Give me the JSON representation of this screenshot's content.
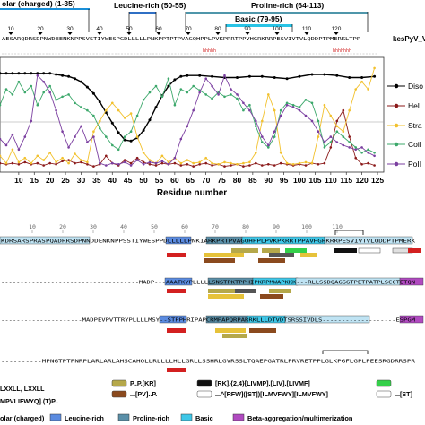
{
  "regions": {
    "polar": "olar (charged) (1-35)",
    "leucine": "Leucine-rich (50-55)",
    "proline": "Proline-rich (64-113)",
    "basic": "Basic (79-95)"
  },
  "region_colors": {
    "polar": "#1a8fd8",
    "leucine": "#2f6fc4",
    "proline": "#4f96aa",
    "basic": "#29c4e6"
  },
  "sequence_label": "kesPyV_V",
  "top_sequence": "AESARQDRSDPNWDEENKNPPSVSTIYWESPGDLLLLLPNKPPTPTPVAGQHPPLPVKPRRTPPVHGRKRRPESVIVTVLQDDPTPMERKLTPP",
  "markers": [
    10,
    20,
    30,
    40,
    50,
    60,
    70,
    80,
    90,
    100,
    110,
    120
  ],
  "chart_data": {
    "type": "line",
    "xlabel": "Residue number",
    "ylabel": "",
    "xlim": [
      4,
      127
    ],
    "ylim": [
      0,
      1
    ],
    "x_ticks": [
      10,
      15,
      20,
      25,
      30,
      35,
      40,
      45,
      50,
      55,
      60,
      65,
      70,
      75,
      80,
      85,
      90,
      95,
      100,
      105,
      110,
      115,
      120,
      125
    ],
    "legend_position": "right",
    "series": [
      {
        "name": "Diso",
        "color": "#000000",
        "points": [
          [
            4,
            0.9
          ],
          [
            6,
            0.9
          ],
          [
            8,
            0.9
          ],
          [
            10,
            0.9
          ],
          [
            12,
            0.9
          ],
          [
            14,
            0.9
          ],
          [
            16,
            0.9
          ],
          [
            18,
            0.9
          ],
          [
            20,
            0.9
          ],
          [
            22,
            0.89
          ],
          [
            24,
            0.88
          ],
          [
            26,
            0.87
          ],
          [
            28,
            0.85
          ],
          [
            30,
            0.82
          ],
          [
            32,
            0.77
          ],
          [
            34,
            0.71
          ],
          [
            36,
            0.63
          ],
          [
            38,
            0.53
          ],
          [
            40,
            0.43
          ],
          [
            42,
            0.34
          ],
          [
            44,
            0.27
          ],
          [
            46,
            0.26
          ],
          [
            48,
            0.29
          ],
          [
            50,
            0.36
          ],
          [
            52,
            0.46
          ],
          [
            54,
            0.58
          ],
          [
            56,
            0.69
          ],
          [
            58,
            0.78
          ],
          [
            60,
            0.84
          ],
          [
            62,
            0.87
          ],
          [
            64,
            0.88
          ],
          [
            68,
            0.88
          ],
          [
            72,
            0.87
          ],
          [
            76,
            0.86
          ],
          [
            80,
            0.86
          ],
          [
            84,
            0.87
          ],
          [
            88,
            0.87
          ],
          [
            92,
            0.86
          ],
          [
            96,
            0.85
          ],
          [
            100,
            0.87
          ],
          [
            104,
            0.89
          ],
          [
            108,
            0.89
          ],
          [
            112,
            0.88
          ],
          [
            116,
            0.86
          ],
          [
            120,
            0.86
          ],
          [
            124,
            0.87
          ]
        ]
      },
      {
        "name": "Hel",
        "color": "#8b1a1a",
        "points": [
          [
            4,
            0.05
          ],
          [
            6,
            0.04
          ],
          [
            8,
            0.05
          ],
          [
            10,
            0.04
          ],
          [
            12,
            0.06
          ],
          [
            14,
            0.04
          ],
          [
            16,
            0.05
          ],
          [
            18,
            0.03
          ],
          [
            20,
            0.05
          ],
          [
            22,
            0.04
          ],
          [
            24,
            0.07
          ],
          [
            26,
            0.08
          ],
          [
            28,
            0.05
          ],
          [
            30,
            0.06
          ],
          [
            32,
            0.04
          ],
          [
            34,
            0.02
          ],
          [
            36,
            0.04
          ],
          [
            38,
            0.12
          ],
          [
            40,
            0.05
          ],
          [
            42,
            0.03
          ],
          [
            44,
            0.08
          ],
          [
            46,
            0.05
          ],
          [
            48,
            0.1
          ],
          [
            50,
            0.06
          ],
          [
            52,
            0.04
          ],
          [
            54,
            0.03
          ],
          [
            56,
            0.05
          ],
          [
            58,
            0.04
          ],
          [
            60,
            0.05
          ],
          [
            62,
            0.03
          ],
          [
            64,
            0.04
          ],
          [
            66,
            0.02
          ],
          [
            68,
            0.04
          ],
          [
            70,
            0.05
          ],
          [
            72,
            0.03
          ],
          [
            74,
            0.04
          ],
          [
            76,
            0.02
          ],
          [
            78,
            0.03
          ],
          [
            80,
            0.04
          ],
          [
            82,
            0.02
          ],
          [
            84,
            0.03
          ],
          [
            86,
            0.05
          ],
          [
            88,
            0.03
          ],
          [
            90,
            0.04
          ],
          [
            92,
            0.03
          ],
          [
            94,
            0.05
          ],
          [
            96,
            0.04
          ],
          [
            98,
            0.03
          ],
          [
            100,
            0.04
          ],
          [
            102,
            0.03
          ],
          [
            104,
            0.05
          ],
          [
            106,
            0.04
          ],
          [
            108,
            0.05
          ],
          [
            110,
            0.2
          ],
          [
            112,
            0.45
          ],
          [
            114,
            0.55
          ],
          [
            116,
            0.3
          ],
          [
            118,
            0.1
          ],
          [
            120,
            0.04
          ],
          [
            122,
            0.05
          ],
          [
            124,
            0.03
          ]
        ]
      },
      {
        "name": "Stra",
        "color": "#f2c12e",
        "points": [
          [
            4,
            0.12
          ],
          [
            6,
            0.05
          ],
          [
            8,
            0.18
          ],
          [
            10,
            0.06
          ],
          [
            12,
            0.1
          ],
          [
            14,
            0.05
          ],
          [
            16,
            0.12
          ],
          [
            18,
            0.08
          ],
          [
            20,
            0.15
          ],
          [
            22,
            0.06
          ],
          [
            24,
            0.1
          ],
          [
            26,
            0.05
          ],
          [
            28,
            0.14
          ],
          [
            30,
            0.08
          ],
          [
            32,
            0.06
          ],
          [
            34,
            0.35
          ],
          [
            36,
            0.45
          ],
          [
            38,
            0.55
          ],
          [
            40,
            0.62
          ],
          [
            42,
            0.55
          ],
          [
            44,
            0.48
          ],
          [
            46,
            0.52
          ],
          [
            48,
            0.3
          ],
          [
            50,
            0.15
          ],
          [
            52,
            0.08
          ],
          [
            54,
            0.05
          ],
          [
            56,
            0.12
          ],
          [
            58,
            0.06
          ],
          [
            60,
            0.1
          ],
          [
            62,
            0.05
          ],
          [
            64,
            0.08
          ],
          [
            66,
            0.05
          ],
          [
            68,
            0.06
          ],
          [
            70,
            0.1
          ],
          [
            72,
            0.05
          ],
          [
            74,
            0.04
          ],
          [
            76,
            0.06
          ],
          [
            78,
            0.05
          ],
          [
            80,
            0.04
          ],
          [
            82,
            0.05
          ],
          [
            84,
            0.06
          ],
          [
            86,
            0.15
          ],
          [
            88,
            0.45
          ],
          [
            90,
            0.7
          ],
          [
            92,
            0.55
          ],
          [
            94,
            0.15
          ],
          [
            96,
            0.05
          ],
          [
            98,
            0.04
          ],
          [
            100,
            0.05
          ],
          [
            102,
            0.06
          ],
          [
            104,
            0.05
          ],
          [
            106,
            0.3
          ],
          [
            108,
            0.6
          ],
          [
            110,
            0.5
          ],
          [
            112,
            0.4
          ],
          [
            114,
            0.35
          ],
          [
            116,
            0.55
          ],
          [
            118,
            0.75
          ],
          [
            120,
            0.82
          ],
          [
            122,
            0.75
          ],
          [
            124,
            0.95
          ]
        ]
      },
      {
        "name": "Coil",
        "color": "#3ca86b",
        "points": [
          [
            4,
            0.6
          ],
          [
            6,
            0.75
          ],
          [
            8,
            0.7
          ],
          [
            10,
            0.82
          ],
          [
            12,
            0.72
          ],
          [
            14,
            0.78
          ],
          [
            16,
            0.6
          ],
          [
            18,
            0.72
          ],
          [
            20,
            0.78
          ],
          [
            22,
            0.65
          ],
          [
            24,
            0.68
          ],
          [
            26,
            0.7
          ],
          [
            28,
            0.62
          ],
          [
            30,
            0.58
          ],
          [
            32,
            0.55
          ],
          [
            34,
            0.5
          ],
          [
            36,
            0.38
          ],
          [
            38,
            0.3
          ],
          [
            40,
            0.22
          ],
          [
            42,
            0.18
          ],
          [
            44,
            0.3
          ],
          [
            46,
            0.35
          ],
          [
            48,
            0.5
          ],
          [
            50,
            0.65
          ],
          [
            52,
            0.72
          ],
          [
            54,
            0.78
          ],
          [
            56,
            0.68
          ],
          [
            58,
            0.85
          ],
          [
            60,
            0.6
          ],
          [
            62,
            0.75
          ],
          [
            64,
            0.72
          ],
          [
            66,
            0.78
          ],
          [
            68,
            0.74
          ],
          [
            70,
            0.7
          ],
          [
            72,
            0.66
          ],
          [
            74,
            0.72
          ],
          [
            76,
            0.68
          ],
          [
            78,
            0.7
          ],
          [
            80,
            0.66
          ],
          [
            82,
            0.55
          ],
          [
            84,
            0.6
          ],
          [
            86,
            0.4
          ],
          [
            88,
            0.25
          ],
          [
            90,
            0.2
          ],
          [
            92,
            0.3
          ],
          [
            94,
            0.55
          ],
          [
            96,
            0.62
          ],
          [
            98,
            0.6
          ],
          [
            100,
            0.58
          ],
          [
            102,
            0.65
          ],
          [
            104,
            0.62
          ],
          [
            106,
            0.45
          ],
          [
            108,
            0.2
          ],
          [
            110,
            0.25
          ],
          [
            112,
            0.35
          ],
          [
            114,
            0.3
          ],
          [
            116,
            0.25
          ],
          [
            118,
            0.2
          ],
          [
            120,
            0.15
          ],
          [
            122,
            0.18
          ],
          [
            124,
            0.15
          ]
        ]
      },
      {
        "name": "PoII",
        "color": "#7b3fa0",
        "points": [
          [
            4,
            0.28
          ],
          [
            6,
            0.22
          ],
          [
            8,
            0.32
          ],
          [
            10,
            0.18
          ],
          [
            12,
            0.3
          ],
          [
            14,
            0.45
          ],
          [
            16,
            0.88
          ],
          [
            18,
            0.82
          ],
          [
            20,
            0.72
          ],
          [
            22,
            0.55
          ],
          [
            24,
            0.35
          ],
          [
            26,
            0.2
          ],
          [
            28,
            0.3
          ],
          [
            30,
            0.4
          ],
          [
            32,
            0.25
          ],
          [
            34,
            0.3
          ],
          [
            36,
            0.05
          ],
          [
            38,
            0.03
          ],
          [
            40,
            0.05
          ],
          [
            42,
            0.04
          ],
          [
            44,
            0.06
          ],
          [
            46,
            0.03
          ],
          [
            48,
            0.08
          ],
          [
            50,
            0.04
          ],
          [
            52,
            0.06
          ],
          [
            54,
            0.05
          ],
          [
            56,
            0.07
          ],
          [
            58,
            0.04
          ],
          [
            60,
            0.1
          ],
          [
            62,
            0.28
          ],
          [
            64,
            0.4
          ],
          [
            66,
            0.55
          ],
          [
            68,
            0.72
          ],
          [
            70,
            0.85
          ],
          [
            72,
            0.78
          ],
          [
            74,
            0.7
          ],
          [
            76,
            0.88
          ],
          [
            78,
            0.75
          ],
          [
            80,
            0.7
          ],
          [
            82,
            0.62
          ],
          [
            84,
            0.55
          ],
          [
            86,
            0.45
          ],
          [
            88,
            0.3
          ],
          [
            90,
            0.22
          ],
          [
            92,
            0.35
          ],
          [
            94,
            0.5
          ],
          [
            96,
            0.6
          ],
          [
            98,
            0.58
          ],
          [
            100,
            0.55
          ],
          [
            102,
            0.5
          ],
          [
            104,
            0.45
          ],
          [
            106,
            0.35
          ],
          [
            108,
            0.25
          ],
          [
            110,
            0.3
          ],
          [
            112,
            0.25
          ],
          [
            114,
            0.22
          ],
          [
            116,
            0.2
          ],
          [
            118,
            0.18
          ],
          [
            120,
            0.2
          ],
          [
            122,
            0.15
          ],
          [
            124,
            0.12
          ]
        ]
      }
    ]
  },
  "alignment": {
    "ruler": [
      "10",
      "20",
      "30",
      "40",
      "50",
      "60",
      "70",
      "80",
      "90",
      "100",
      "110"
    ],
    "rows": [
      "KDRSARSPRASPQADRRSDPNNDDENKNPPSSTIYWESPPDLLLLLPNKIARKPRTPVAGQHPPLPVKPKRRTPPAVHGRKRRPESVIVTVLQDDPTPMERK",
      "------------------------------------MADP---AAATKYPLLLLLSNSTPKTPPHIPKRPMWAPKKK---RLLSSDQAGSGTPETPATPLSCCTETQN",
      "---------------------MADPEVPVTTRYPLLLLMSY--STPPHRIPAPCRMPAPQRPARRKLLLDTVDTSRSSIVDLS-------------------ESPGM",
      "----------MPNGTPTPNRPLARLARLAHSCAHQLLRLLLLHLLGRLLSSHRLGVRSSLTQAEPGATRLPRVRETPPLGLKPGFLGPLPEESRGDRRSPR"
    ]
  },
  "motif_legend": [
    {
      "label": "LXXLL, LXXLL",
      "color": "#ffffff"
    },
    {
      "label": "P..P.[KR]",
      "color": "#b5a84a"
    },
    {
      "label": "[RK].{2,4}[LIVMP].[LIV].[LIVMF]",
      "color": "#111111"
    },
    {
      "label": "",
      "color": "#34d04a"
    },
    {
      "label": "MPVLIFWYQ].(T)P..",
      "color": "#ffffff"
    },
    {
      "label": "...[PV]..P.",
      "color": "#8b4a1e"
    },
    {
      "label": "...^[RFW]([ST])[ILMVFWY][ILMVFWY]",
      "color": "#ffffff"
    },
    {
      "label": "...[ST]",
      "color": "#ffffff"
    }
  ],
  "region_legend": [
    {
      "label": "olar (charged)",
      "color": "#ffffff"
    },
    {
      "label": "Leucine-rich",
      "color": "#5b8be0"
    },
    {
      "label": "Proline-rich",
      "color": "#5a8fa8"
    },
    {
      "label": "Basic",
      "color": "#3fc7e8"
    },
    {
      "label": "Beta-aggregation/multimerization",
      "color": "#b04ac0"
    }
  ]
}
